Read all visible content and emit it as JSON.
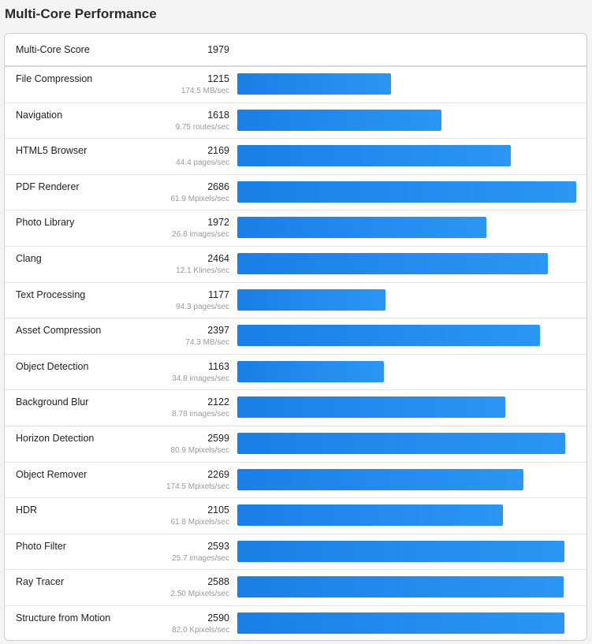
{
  "page": {
    "title": "Multi-Core Performance"
  },
  "colors": {
    "bar": "#1f88ec",
    "background": "#f4f4f4",
    "card": "#ffffff"
  },
  "summary": {
    "label": "Multi-Core Score",
    "score": "1979"
  },
  "chart_data": {
    "type": "bar",
    "orientation": "horizontal",
    "title": "Multi-Core Performance",
    "xlim": [
      0,
      2686
    ],
    "categories": [
      "File Compression",
      "Navigation",
      "HTML5 Browser",
      "PDF Renderer",
      "Photo Library",
      "Clang",
      "Text Processing",
      "Asset Compression",
      "Object Detection",
      "Background Blur",
      "Horizon Detection",
      "Object Remover",
      "HDR",
      "Photo Filter",
      "Ray Tracer",
      "Structure from Motion"
    ],
    "values": [
      1215,
      1618,
      2169,
      2686,
      1972,
      2464,
      1177,
      2397,
      1163,
      2122,
      2599,
      2269,
      2105,
      2593,
      2588,
      2590
    ],
    "units": [
      "174.5 MB/sec",
      "9.75 routes/sec",
      "44.4 pages/sec",
      "61.9 Mpixels/sec",
      "26.8 images/sec",
      "12.1 Klines/sec",
      "94.3 pages/sec",
      "74.3 MB/sec",
      "34.8 images/sec",
      "8.78 images/sec",
      "80.9 Mpixels/sec",
      "174.5 Mpixels/sec",
      "61.8 Mpixels/sec",
      "25.7 images/sec",
      "2.50 Mpixels/sec",
      "82.0 Kpixels/sec"
    ]
  }
}
